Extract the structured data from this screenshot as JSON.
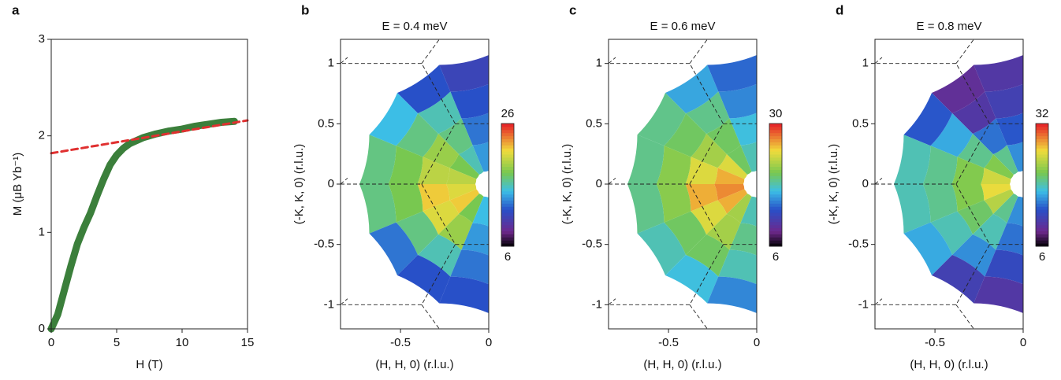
{
  "chart_data": [
    {
      "type": "line",
      "panel": "a",
      "xlabel": "H (T)",
      "ylabel": "M (μB Yb⁻¹)",
      "xlim": [
        0,
        15
      ],
      "ylim": [
        0,
        3
      ],
      "xticks": [
        0,
        5,
        10,
        15
      ],
      "yticks": [
        0,
        1,
        2,
        3
      ],
      "series": [
        {
          "name": "M",
          "color": "#3b7f3b",
          "style": "solid",
          "x": [
            0,
            0.5,
            1,
            1.5,
            2,
            2.5,
            3,
            3.5,
            4,
            4.5,
            5,
            5.5,
            6,
            7,
            8,
            9,
            10,
            11,
            12,
            13,
            14
          ],
          "values": [
            0,
            0.15,
            0.4,
            0.65,
            0.88,
            1.05,
            1.2,
            1.38,
            1.55,
            1.7,
            1.8,
            1.87,
            1.92,
            1.98,
            2.02,
            2.05,
            2.07,
            2.1,
            2.12,
            2.14,
            2.15
          ]
        },
        {
          "name": "fit",
          "color": "#e03030",
          "style": "dashed",
          "x": [
            0,
            15
          ],
          "values": [
            1.82,
            2.16
          ]
        }
      ]
    },
    {
      "type": "heatmap",
      "panel": "b",
      "title": "E = 0.4 meV",
      "xlabel": "(H, H, 0) (r.l.u.)",
      "ylabel": "(-K, K, 0) (r.l.u.)",
      "xlim": [
        -0.84,
        0
      ],
      "ylim": [
        -1.2,
        1.2
      ],
      "xticks": [
        -0.5,
        0
      ],
      "yticks": [
        -1,
        -0.5,
        0,
        0.5,
        1
      ],
      "clim": [
        6,
        26
      ],
      "cticks": [
        6,
        26
      ],
      "z": [
        [
          14,
          16,
          18,
          20,
          21,
          22,
          18,
          15
        ],
        [
          13,
          17,
          19,
          20,
          22,
          21,
          19,
          14
        ],
        [
          12,
          16,
          17,
          18,
          18,
          17,
          16,
          13
        ],
        [
          11,
          12,
          15,
          17,
          17,
          13,
          12,
          12
        ]
      ]
    },
    {
      "type": "heatmap",
      "panel": "c",
      "title": "E = 0.6 meV",
      "xlabel": "(H, H, 0) (r.l.u.)",
      "ylabel": "(-K, K, 0) (r.l.u.)",
      "xlim": [
        -0.84,
        0
      ],
      "ylim": [
        -1.2,
        1.2
      ],
      "xticks": [
        -0.5,
        0
      ],
      "yticks": [
        -1,
        -0.5,
        0,
        0.5,
        1
      ],
      "clim": [
        6,
        30
      ],
      "cticks": [
        6,
        30
      ],
      "z": [
        [
          18,
          20,
          24,
          26,
          27,
          26,
          22,
          18
        ],
        [
          17,
          20,
          22,
          24,
          26,
          24,
          22,
          19
        ],
        [
          15,
          19,
          20,
          21,
          21,
          20,
          20,
          18
        ],
        [
          14,
          16,
          19,
          19,
          19,
          18,
          17,
          15
        ]
      ]
    },
    {
      "type": "heatmap",
      "panel": "d",
      "title": "E = 0.8 meV",
      "xlabel": "(H, H, 0) (r.l.u.)",
      "ylabel": "(-K, K, 0) (r.l.u.)",
      "xlim": [
        -0.84,
        0
      ],
      "ylim": [
        -1.2,
        1.2
      ],
      "xticks": [
        -0.5,
        0
      ],
      "yticks": [
        -1,
        -0.5,
        0,
        0.5,
        1
      ],
      "clim": [
        6,
        32
      ],
      "cticks": [
        6,
        32
      ],
      "z": [
        [
          16,
          20,
          22,
          25,
          26,
          24,
          20,
          16
        ],
        [
          14,
          15,
          20,
          22,
          22,
          21,
          19,
          15
        ],
        [
          12,
          11,
          17,
          20,
          20,
          19,
          16,
          13
        ],
        [
          11,
          10,
          14,
          19,
          19,
          17,
          12,
          11
        ]
      ]
    }
  ]
}
